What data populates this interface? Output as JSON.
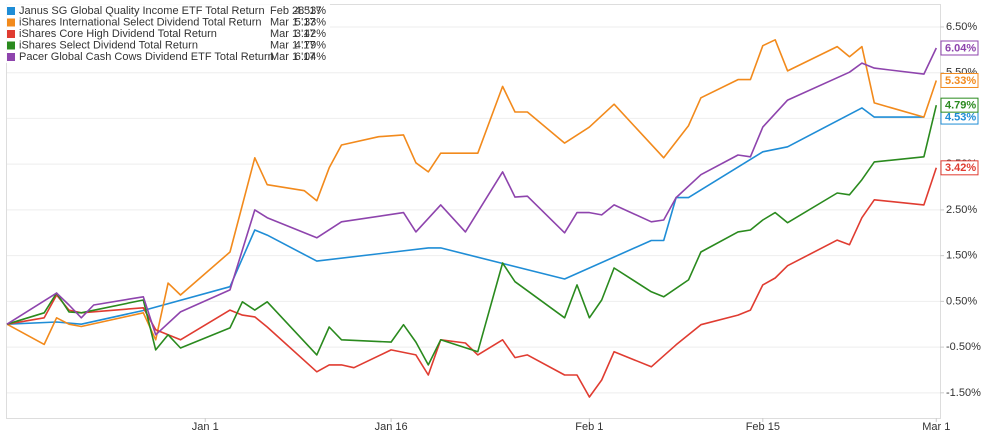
{
  "chart_data": {
    "type": "line",
    "xlim": [
      -16,
      59.3
    ],
    "ylim": [
      -2.05,
      6.98
    ],
    "grid": true,
    "xticks": [
      {
        "value": 0,
        "label": "Jan 1"
      },
      {
        "value": 15,
        "label": "Jan 16"
      },
      {
        "value": 31,
        "label": "Feb 1"
      },
      {
        "value": 45,
        "label": "Feb 15"
      },
      {
        "value": 59,
        "label": "Mar 1"
      }
    ],
    "yticks": [
      {
        "value": -1.5,
        "label": "-1.50%"
      },
      {
        "value": -0.5,
        "label": "-0.50%"
      },
      {
        "value": 0.5,
        "label": "0.50%"
      },
      {
        "value": 1.5,
        "label": "1.50%"
      },
      {
        "value": 2.5,
        "label": "2.50%"
      },
      {
        "value": 3.5,
        "label": "3.50%"
      },
      {
        "value": 4.5,
        "label": "4.50%"
      },
      {
        "value": 5.5,
        "label": "5.50%"
      },
      {
        "value": 6.5,
        "label": "6.50%"
      }
    ],
    "series": [
      {
        "name": "Janus SG Global Quality Income ETF Total Return",
        "color": "#1f8dd6",
        "end_date": "Feb 28 '17",
        "end_value": {
          "value": 4.53,
          "label": "4.53%"
        },
        "x": [
          -16,
          -12,
          -10,
          -5,
          2,
          4,
          5,
          9,
          18,
          19,
          29,
          36,
          37,
          38,
          39,
          45,
          47,
          53,
          54,
          58
        ],
        "values": [
          0,
          0.05,
          0,
          0.3,
          0.82,
          2.06,
          1.95,
          1.38,
          1.67,
          1.67,
          0.99,
          1.83,
          1.83,
          2.77,
          2.77,
          3.77,
          3.88,
          4.73,
          4.53,
          4.53
        ]
      },
      {
        "name": "iShares International Select Dividend Total Return",
        "color": "#f28a1c",
        "end_date": "Mar 1 '17",
        "end_value": {
          "value": 5.33,
          "label": "5.33%"
        },
        "x": [
          -16,
          -13,
          -12,
          -11,
          -10,
          -5,
          -4,
          -3,
          -2,
          2,
          4,
          5,
          8,
          9,
          10,
          11,
          14,
          16,
          17,
          18,
          19,
          22,
          24,
          25,
          26,
          29,
          31,
          33,
          37,
          39,
          40,
          43,
          44,
          45,
          46,
          47,
          51,
          52,
          53,
          54,
          58,
          59
        ],
        "values": [
          0,
          -0.44,
          0.14,
          0,
          -0.05,
          0.25,
          -0.34,
          0.9,
          0.64,
          1.58,
          3.64,
          3.05,
          2.92,
          2.7,
          3.42,
          3.92,
          4.1,
          4.14,
          3.53,
          3.33,
          3.74,
          3.74,
          5.2,
          4.64,
          4.64,
          3.96,
          4.31,
          4.81,
          3.64,
          4.34,
          4.95,
          5.35,
          5.35,
          6.09,
          6.22,
          5.54,
          6.07,
          5.85,
          6.07,
          4.84,
          4.53,
          5.33
        ]
      },
      {
        "name": "iShares Core High Dividend Total Return",
        "color": "#e03c31",
        "end_date": "Mar 1 '17",
        "end_value": {
          "value": 3.42,
          "label": "3.42%"
        },
        "x": [
          -16,
          -13,
          -12,
          -11,
          -10,
          -5,
          -4,
          -2,
          2,
          3,
          4,
          5,
          9,
          10,
          11,
          12,
          15,
          17,
          18,
          19,
          21,
          22,
          24,
          25,
          26,
          29,
          30,
          31,
          32,
          33,
          36,
          38,
          40,
          43,
          44,
          45,
          46,
          47,
          51,
          52,
          53,
          54,
          58,
          59
        ],
        "values": [
          0,
          0.14,
          0.64,
          0.31,
          0.25,
          0.36,
          -0.12,
          -0.34,
          0.31,
          0.2,
          0.16,
          -0.06,
          -1.04,
          -0.89,
          -0.89,
          -0.95,
          -0.56,
          -0.67,
          -1.11,
          -0.34,
          -0.41,
          -0.67,
          -0.34,
          -0.73,
          -0.67,
          -1.11,
          -1.11,
          -1.59,
          -1.22,
          -0.6,
          -0.93,
          -0.45,
          -0.01,
          0.2,
          0.31,
          0.86,
          1.01,
          1.28,
          1.84,
          1.74,
          2.33,
          2.72,
          2.61,
          3.42
        ]
      },
      {
        "name": "iShares Select Dividend Total Return",
        "color": "#2a8a1e",
        "end_date": "Mar 1 '17",
        "end_value": {
          "value": 4.79,
          "label": "4.79%"
        },
        "x": [
          -16,
          -13,
          -12,
          -11,
          -10,
          -5,
          -4,
          -3,
          -2,
          2,
          3,
          4,
          5,
          9,
          10,
          11,
          15,
          16,
          17,
          18,
          19,
          22,
          24,
          25,
          29,
          30,
          31,
          32,
          33,
          36,
          37,
          39,
          40,
          43,
          44,
          45,
          46,
          47,
          51,
          52,
          53,
          54,
          58,
          59
        ],
        "values": [
          0,
          0.25,
          0.68,
          0.27,
          0.25,
          0.53,
          -0.56,
          -0.23,
          -0.52,
          -0.08,
          0.49,
          0.31,
          0.49,
          -0.67,
          -0.06,
          -0.34,
          -0.39,
          -0.01,
          -0.39,
          -0.89,
          -0.34,
          -0.6,
          1.34,
          0.93,
          0.14,
          0.86,
          0.14,
          0.53,
          1.23,
          0.71,
          0.6,
          0.97,
          1.58,
          2.02,
          2.06,
          2.28,
          2.44,
          2.22,
          2.87,
          2.83,
          3.16,
          3.55,
          3.66,
          4.79
        ]
      },
      {
        "name": "Pacer Global Cash Cows Dividend ETF Total Return",
        "color": "#8e44ad",
        "end_date": "Mar 1 '17",
        "end_value": {
          "value": 6.04,
          "label": "6.04%"
        },
        "x": [
          -16,
          -12,
          -11,
          -10,
          -9,
          -5,
          -4,
          -2,
          2,
          4,
          5,
          9,
          11,
          16,
          17,
          19,
          21,
          24,
          25,
          26,
          29,
          30,
          31,
          32,
          33,
          36,
          37,
          38,
          40,
          43,
          44,
          45,
          47,
          52,
          53,
          54,
          58,
          59
        ],
        "values": [
          0,
          0.68,
          0.42,
          0.14,
          0.42,
          0.6,
          -0.23,
          0.27,
          0.75,
          2.5,
          2.33,
          1.89,
          2.24,
          2.44,
          2.02,
          2.61,
          2.02,
          3.33,
          2.78,
          2.8,
          2.0,
          2.44,
          2.44,
          2.39,
          2.61,
          2.24,
          2.28,
          2.77,
          3.27,
          3.7,
          3.66,
          4.31,
          4.9,
          5.51,
          5.71,
          5.6,
          5.47,
          6.04
        ]
      }
    ]
  }
}
